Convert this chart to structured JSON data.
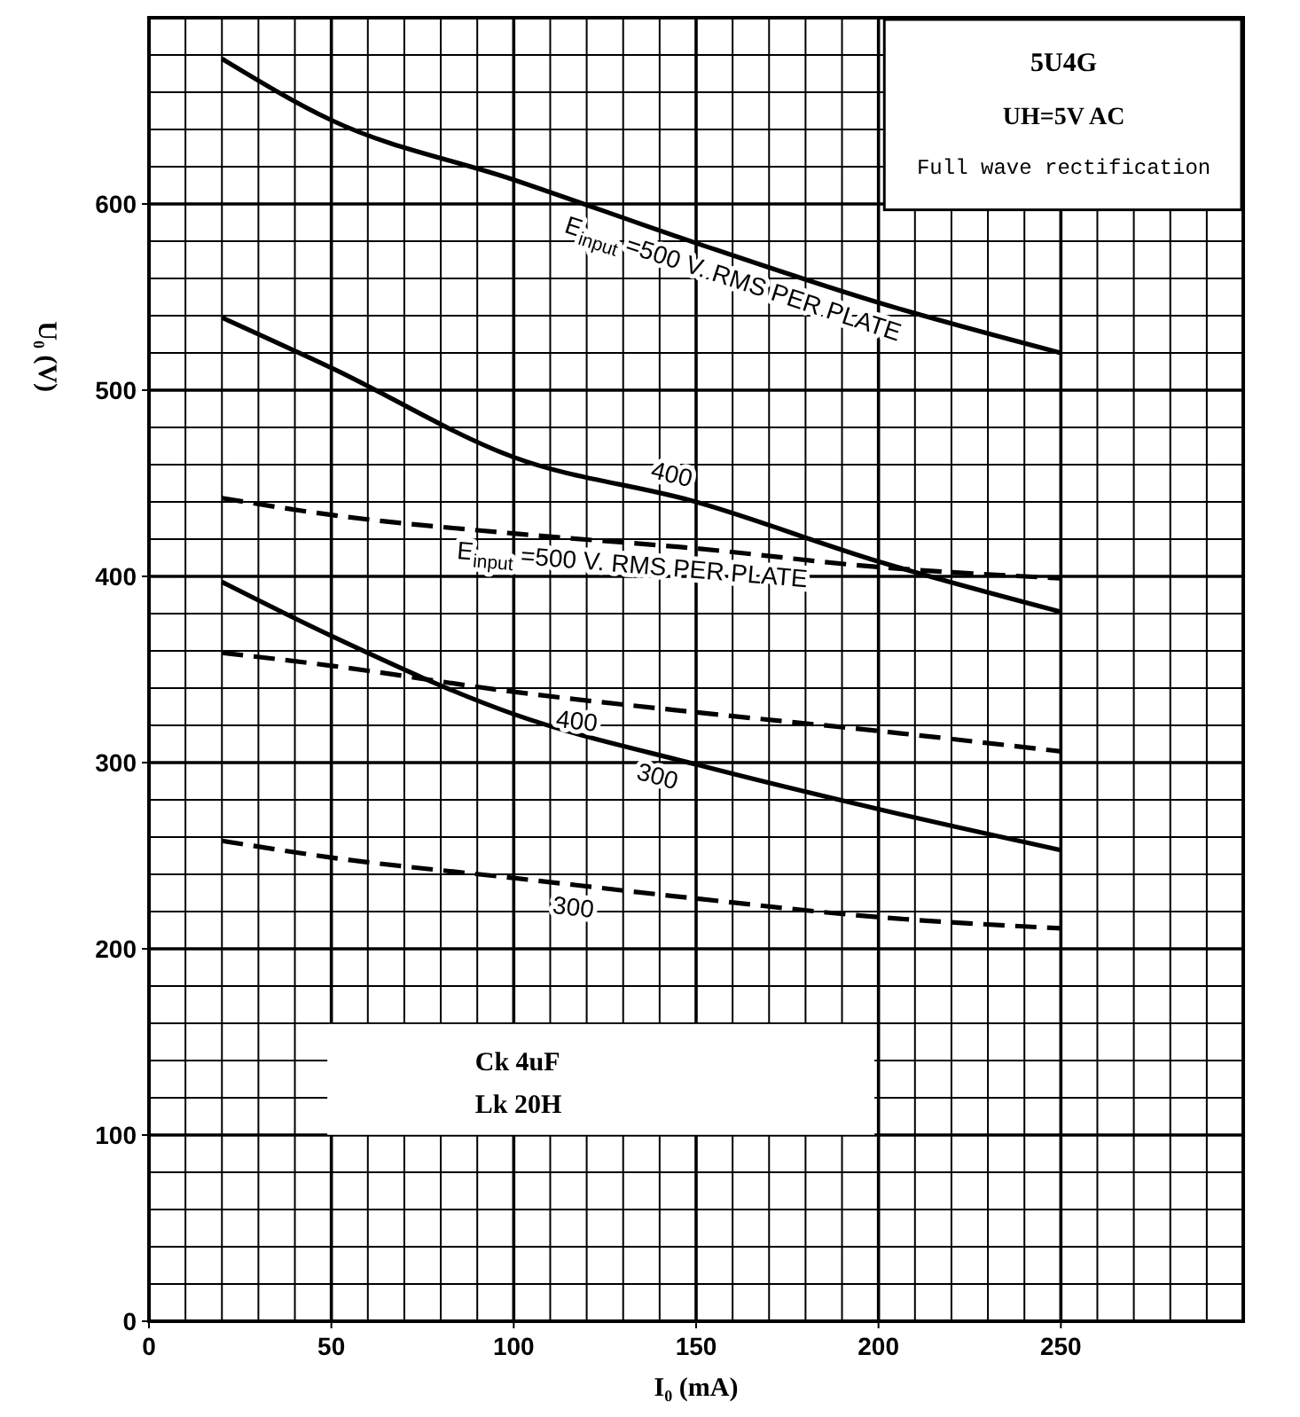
{
  "chart_data": {
    "type": "line",
    "title": "5U4G",
    "subtitle": "UH=5V AC",
    "xlabel": "I₀ (mA)",
    "ylabel": "U₀ (V)",
    "x": [
      20,
      50,
      100,
      150,
      200,
      250
    ],
    "series": [
      {
        "color": "#000000",
        "values": [
          678,
          645,
          613,
          579,
          547,
          520
        ]
      },
      {
        "color": "#000000",
        "values": [
          539,
          512,
          464,
          440,
          408,
          381
        ]
      },
      {
        "color": "#000000",
        "values": [
          397,
          368,
          326,
          299,
          275,
          253
        ]
      },
      {
        "color": "#000000",
        "line_style": "dashed",
        "values": [
          442,
          433,
          423,
          415,
          405,
          399
        ]
      },
      {
        "color": "#000000",
        "line_style": "dashed",
        "values": [
          359,
          352,
          338,
          327,
          317,
          306
        ]
      },
      {
        "color": "#000000",
        "line_style": "dashed",
        "values": [
          258,
          249,
          238,
          227,
          217,
          211
        ]
      }
    ],
    "xlim": [
      0,
      300
    ],
    "ylim": [
      0,
      700
    ],
    "xticks": [
      0,
      50,
      100,
      150,
      200,
      250
    ],
    "yticks": [
      0,
      100,
      200,
      300,
      400,
      500,
      600
    ],
    "grid": true,
    "marker": "none",
    "line_style": "solid",
    "annotations": [
      "Full wave rectification",
      "Ck  4uF",
      "Lk  20H",
      {
        "text": "E$_{input}$ =500 V. RMS PER PLATE",
        "x": 162,
        "y": 571
      },
      {
        "text": "400",
        "x": 142,
        "y": 444
      },
      {
        "text": "E$_{input}$ =500 V. RMS PER PLATE",
        "x": 133,
        "y": 418
      },
      {
        "text": "400",
        "x": 118,
        "y": 334
      },
      {
        "text": "300",
        "x": 141,
        "y": 304
      },
      {
        "text": "300",
        "x": 117,
        "y": 234
      }
    ]
  }
}
